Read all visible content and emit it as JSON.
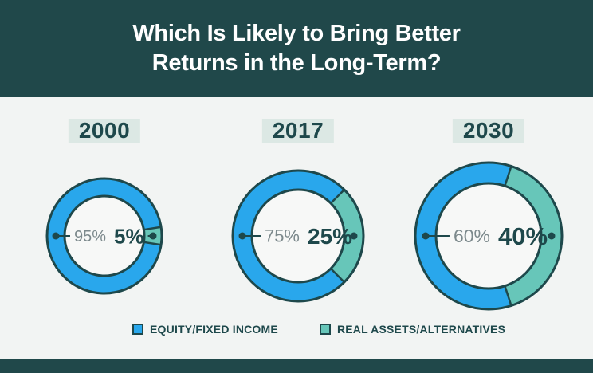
{
  "title": {
    "line1": "Which Is Likely to Bring Better",
    "line2": "Returns in the Long-Term?"
  },
  "legend": {
    "items": [
      {
        "label": "EQUITY/FIXED INCOME",
        "color": "#29A7EC"
      },
      {
        "label": "REAL ASSETS/ALTERNATIVES",
        "color": "#67C6B9"
      }
    ]
  },
  "colors": {
    "header_bg": "#20484A",
    "footer_bg": "#20484A",
    "page_bg": "#F2F4F3",
    "dark": "#1E484B",
    "blue": "#29A7EC",
    "teal": "#67C6B9",
    "gray_label": "#7C898C",
    "year_highlight": "#DCE8E4",
    "inner_circle": "#F7F8F7"
  },
  "chart_data": {
    "type": "pie",
    "subtype": "donut",
    "title": "Which Is Likely to Bring Better Returns in the Long-Term?",
    "legend": [
      "EQUITY/FIXED INCOME",
      "REAL ASSETS/ALTERNATIVES"
    ],
    "legend_position": "bottom",
    "charts": [
      {
        "year": "2000",
        "series": [
          {
            "name": "Equity/Fixed Income",
            "value": 95,
            "label": "95%"
          },
          {
            "name": "Real Assets/Alternatives",
            "value": 5,
            "label": "5%"
          }
        ]
      },
      {
        "year": "2017",
        "series": [
          {
            "name": "Equity/Fixed Income",
            "value": 75,
            "label": "75%"
          },
          {
            "name": "Real Assets/Alternatives",
            "value": 25,
            "label": "25%"
          }
        ]
      },
      {
        "year": "2030",
        "series": [
          {
            "name": "Equity/Fixed Income",
            "value": 60,
            "label": "60%"
          },
          {
            "name": "Real Assets/Alternatives",
            "value": 40,
            "label": "40%"
          }
        ]
      }
    ]
  }
}
